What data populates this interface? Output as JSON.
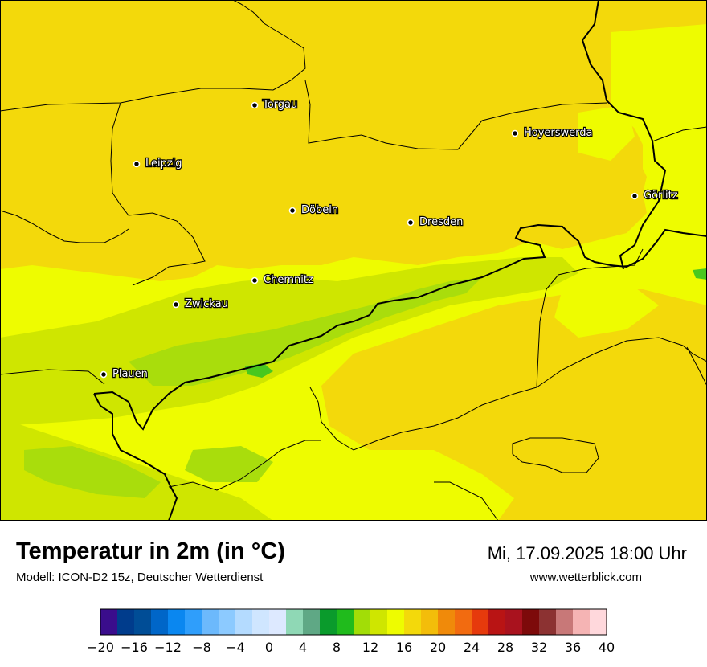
{
  "title": "Temperatur in 2m (in °C)",
  "model": "Modell: ICON-D2 15z, Deutscher Wetterdienst",
  "datetime": "Mi, 17.09.2025 18:00 Uhr",
  "website": "www.wetterblick.com",
  "cities": [
    {
      "name": "Torgau"
    },
    {
      "name": "Hoyerswerda"
    },
    {
      "name": "Leipzig"
    },
    {
      "name": "Görlitz"
    },
    {
      "name": "Döbeln"
    },
    {
      "name": "Dresden"
    },
    {
      "name": "Chemnitz"
    },
    {
      "name": "Zwickau"
    },
    {
      "name": "Plauen"
    }
  ],
  "colors": {
    "t14": "#cfe600",
    "t16": "#eefc00",
    "t18": "#f3d90b",
    "t12": "#a9dd0c",
    "t10": "#48c81e"
  },
  "legend": {
    "colors": [
      "#3a0d8c",
      "#003c8c",
      "#004d96",
      "#0066c8",
      "#0a87f0",
      "#2f9efb",
      "#6cb9fc",
      "#8ccaff",
      "#b4dbff",
      "#cfe6ff",
      "#dde9ff",
      "#8fd8b5",
      "#5fa885",
      "#0a9b2c",
      "#20bb1c",
      "#a2dd07",
      "#cfe600",
      "#eefc00",
      "#f3d90b",
      "#f3bd0a",
      "#f08a0a",
      "#f26b10",
      "#e63a0c",
      "#b91414",
      "#a9121e",
      "#7d0a0a",
      "#8c3232",
      "#c87878",
      "#f5b4b4",
      "#ffd8dc"
    ],
    "tick_labels": [
      "−20",
      "−16",
      "−12",
      "−8",
      "−4",
      "0",
      "4",
      "8",
      "12",
      "16",
      "20",
      "24",
      "28",
      "32",
      "36",
      "40"
    ]
  }
}
